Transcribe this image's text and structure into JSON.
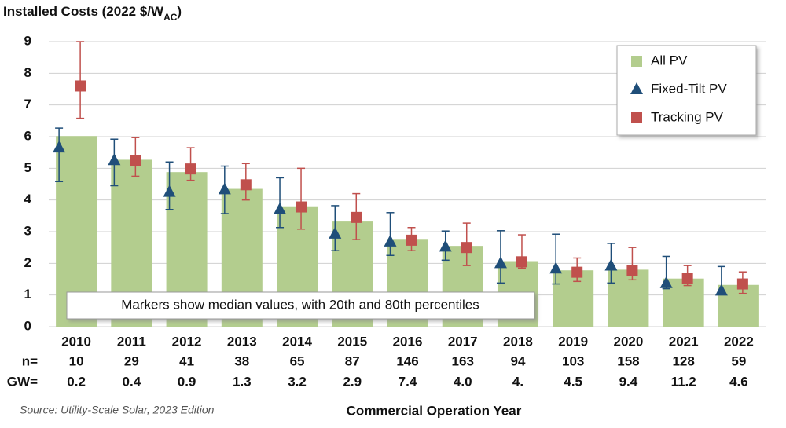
{
  "chart_data": {
    "type": "bar",
    "ylabel": {
      "main": "Installed Costs (2022 $/W",
      "sub": "AC",
      "end": ")"
    },
    "xlabel": "Commercial Operation Year",
    "source": "Source: Utility-Scale Solar, 2023 Edition",
    "annotation": "Markers show median values, with 20th and 80th percentiles",
    "categories": [
      "2010",
      "2011",
      "2012",
      "2013",
      "2014",
      "2015",
      "2016",
      "2017",
      "2018",
      "2019",
      "2020",
      "2021",
      "2022"
    ],
    "n_label": "n=",
    "n": [
      10,
      29,
      41,
      38,
      65,
      87,
      146,
      163,
      94,
      103,
      158,
      128,
      59
    ],
    "gw_label": "GW=",
    "gw": [
      0.2,
      0.4,
      0.9,
      1.3,
      3.2,
      2.9,
      7.4,
      4.0,
      4.0,
      4.5,
      9.4,
      11.2,
      4.6
    ],
    "gw_labels": [
      "0.2",
      "0.4",
      "0.9",
      "1.3",
      "3.2",
      "2.9",
      "7.4",
      "4.0",
      "4.",
      "4.5",
      "9.4",
      "11.2",
      "4.6"
    ],
    "ylim": [
      0,
      9
    ],
    "yticks": [
      0,
      1,
      2,
      3,
      4,
      5,
      6,
      7,
      8,
      9
    ],
    "grid": true,
    "legend": "top-right",
    "series": [
      {
        "name": "All PV",
        "color": "#b3cd8e",
        "values": [
          6.02,
          5.27,
          4.88,
          4.35,
          3.8,
          3.32,
          2.77,
          2.55,
          2.07,
          1.78,
          1.8,
          1.52,
          1.32
        ]
      },
      {
        "name": "Fixed-Tilt PV",
        "color": "#1f4e79",
        "marker": "triangle",
        "values": [
          5.65,
          5.25,
          4.25,
          4.33,
          3.7,
          2.93,
          2.68,
          2.52,
          2.0,
          1.83,
          1.92,
          1.37,
          1.13
        ],
        "p20": [
          4.58,
          4.45,
          3.7,
          3.57,
          3.13,
          2.4,
          2.25,
          2.1,
          1.38,
          1.35,
          1.38,
          1.2,
          1.05
        ],
        "p80": [
          6.27,
          5.92,
          5.2,
          5.07,
          4.7,
          3.82,
          3.6,
          3.02,
          3.03,
          2.92,
          2.63,
          2.22,
          1.9
        ]
      },
      {
        "name": "Tracking PV",
        "color": "#c0504d",
        "marker": "square",
        "values": [
          7.6,
          5.25,
          4.98,
          4.48,
          3.78,
          3.45,
          2.73,
          2.5,
          2.05,
          1.72,
          1.78,
          1.53,
          1.35
        ],
        "p20": [
          6.58,
          4.75,
          4.62,
          4.0,
          3.08,
          2.75,
          2.4,
          1.93,
          1.85,
          1.43,
          1.48,
          1.3,
          1.05
        ],
        "p80": [
          9.0,
          5.97,
          5.65,
          5.15,
          5.0,
          4.2,
          3.13,
          3.27,
          2.9,
          2.17,
          2.5,
          1.93,
          1.73
        ]
      }
    ]
  }
}
